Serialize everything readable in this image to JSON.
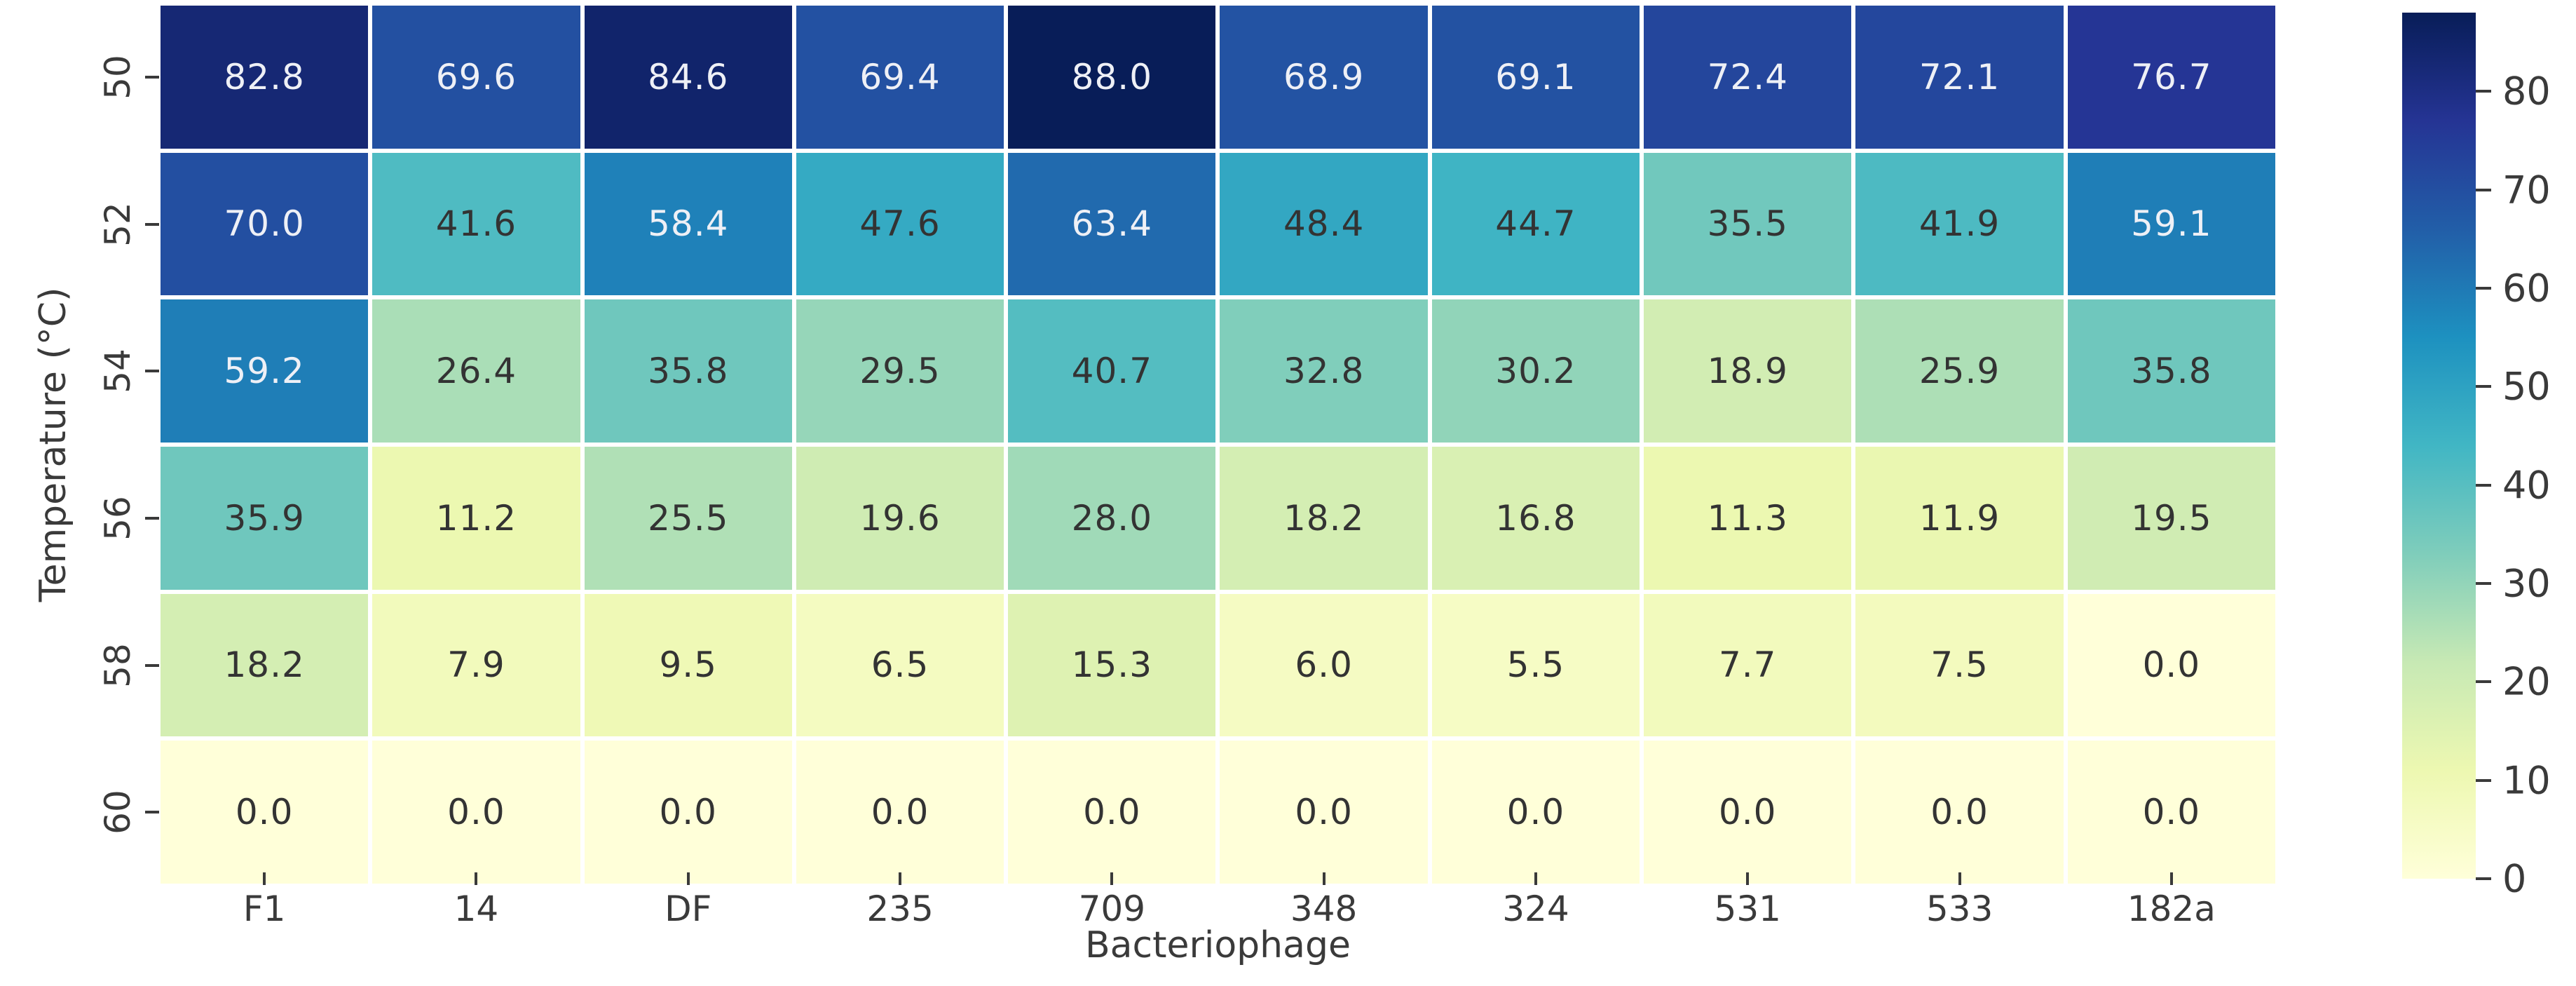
{
  "figure": {
    "background_color": "#ffffff",
    "tick_text_color": "#3a3a3a"
  },
  "chart_data": {
    "type": "heatmap",
    "title": "",
    "xlabel": "Bacteriophage",
    "ylabel": "Temperature (°C)",
    "x_categories": [
      "F1",
      "14",
      "DF",
      "235",
      "709",
      "348",
      "324",
      "531",
      "533",
      "182a"
    ],
    "y_categories": [
      "50",
      "52",
      "54",
      "56",
      "58",
      "60"
    ],
    "values": [
      [
        82.8,
        69.6,
        84.6,
        69.4,
        88.0,
        68.9,
        69.1,
        72.4,
        72.1,
        76.7
      ],
      [
        70.0,
        41.6,
        58.4,
        47.6,
        63.4,
        48.4,
        44.7,
        35.5,
        41.9,
        59.1
      ],
      [
        59.2,
        26.4,
        35.8,
        29.5,
        40.7,
        32.8,
        30.2,
        18.9,
        25.9,
        35.8
      ],
      [
        35.9,
        11.2,
        25.5,
        19.6,
        28.0,
        18.2,
        16.8,
        11.3,
        11.9,
        19.5
      ],
      [
        18.2,
        7.9,
        9.5,
        6.5,
        15.3,
        6.0,
        5.5,
        7.7,
        7.5,
        0.0
      ],
      [
        0.0,
        0.0,
        0.0,
        0.0,
        0.0,
        0.0,
        0.0,
        0.0,
        0.0,
        0.0
      ]
    ],
    "value_format_decimals": 1,
    "vmin": 0,
    "vmax": 88,
    "colormap": "YlGnBu",
    "colormap_stops": [
      "#ffffd9",
      "#edf8b1",
      "#c7e9b4",
      "#7fcdbb",
      "#41b6c4",
      "#1d91c0",
      "#225ea8",
      "#253494",
      "#081d58"
    ],
    "colorbar_ticks": [
      0,
      10,
      20,
      30,
      40,
      50,
      60,
      70,
      80
    ],
    "colorbar_position": "right",
    "grid_line_color": "#ffffff",
    "annot_color_on_dark": "#eef0f6",
    "annot_color_on_light": "#333333",
    "legend": "none",
    "grid": "off"
  }
}
